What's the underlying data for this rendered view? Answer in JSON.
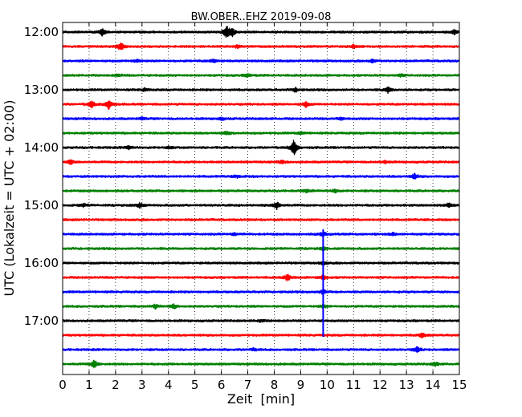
{
  "chart_data": {
    "type": "line",
    "title": "BW.OBER..EHZ 2019-09-08",
    "xlabel": "Zeit  [min]",
    "ylabel": "UTC (Lokalzeit = UTC + 02:00)",
    "xlim": [
      0,
      15
    ],
    "x_ticks": [
      "0",
      "1",
      "2",
      "3",
      "4",
      "5",
      "6",
      "7",
      "8",
      "9",
      "10",
      "11",
      "12",
      "13",
      "14",
      "15"
    ],
    "y_ticks": [
      "12:00",
      "13:00",
      "14:00",
      "15:00",
      "16:00",
      "17:00"
    ],
    "grid": "vertical dotted",
    "colors": [
      "#000000",
      "#ff0000",
      "#0000ff",
      "#008000"
    ],
    "traces": [
      {
        "start": "12:00",
        "color": "#000000",
        "events": [
          {
            "t": 1.5,
            "amp": 0.45
          },
          {
            "t": 6.2,
            "amp": 0.8
          },
          {
            "t": 6.4,
            "amp": 0.5
          },
          {
            "t": 14.8,
            "amp": 0.3
          }
        ]
      },
      {
        "start": "12:15",
        "color": "#ff0000",
        "events": [
          {
            "t": 2.2,
            "amp": 0.5
          },
          {
            "t": 6.6,
            "amp": 0.2
          },
          {
            "t": 11.0,
            "amp": 0.2
          }
        ]
      },
      {
        "start": "12:30",
        "color": "#0000ff",
        "events": [
          {
            "t": 2.8,
            "amp": 0.2
          },
          {
            "t": 5.7,
            "amp": 0.25
          },
          {
            "t": 11.7,
            "amp": 0.2
          }
        ]
      },
      {
        "start": "12:45",
        "color": "#008000",
        "events": [
          {
            "t": 2.1,
            "amp": 0.15
          },
          {
            "t": 7.0,
            "amp": 0.2
          },
          {
            "t": 12.8,
            "amp": 0.15
          }
        ]
      },
      {
        "start": "13:00",
        "color": "#000000",
        "events": [
          {
            "t": 3.1,
            "amp": 0.2
          },
          {
            "t": 8.8,
            "amp": 0.25
          },
          {
            "t": 12.3,
            "amp": 0.35
          }
        ]
      },
      {
        "start": "13:15",
        "color": "#ff0000",
        "events": [
          {
            "t": 1.1,
            "amp": 0.45
          },
          {
            "t": 1.75,
            "amp": 0.65
          },
          {
            "t": 9.2,
            "amp": 0.3
          }
        ]
      },
      {
        "start": "13:30",
        "color": "#0000ff",
        "events": [
          {
            "t": 3.0,
            "amp": 0.15
          },
          {
            "t": 6.0,
            "amp": 0.15
          },
          {
            "t": 10.5,
            "amp": 0.15
          }
        ]
      },
      {
        "start": "13:45",
        "color": "#008000",
        "events": [
          {
            "t": 6.2,
            "amp": 0.2
          },
          {
            "t": 9.0,
            "amp": 0.15
          }
        ]
      },
      {
        "start": "14:00",
        "color": "#000000",
        "events": [
          {
            "t": 2.5,
            "amp": 0.2
          },
          {
            "t": 4.0,
            "amp": 0.15
          },
          {
            "t": 8.75,
            "amp": 1.05
          }
        ]
      },
      {
        "start": "14:15",
        "color": "#ff0000",
        "events": [
          {
            "t": 0.3,
            "amp": 0.25
          },
          {
            "t": 8.3,
            "amp": 0.2
          },
          {
            "t": 12.2,
            "amp": 0.15
          }
        ]
      },
      {
        "start": "14:30",
        "color": "#0000ff",
        "events": [
          {
            "t": 6.6,
            "amp": 0.15
          },
          {
            "t": 13.3,
            "amp": 0.3
          }
        ]
      },
      {
        "start": "14:45",
        "color": "#008000",
        "events": [
          {
            "t": 9.2,
            "amp": 0.15
          },
          {
            "t": 10.3,
            "amp": 0.2
          }
        ]
      },
      {
        "start": "15:00",
        "color": "#000000",
        "events": [
          {
            "t": 0.8,
            "amp": 0.2
          },
          {
            "t": 2.9,
            "amp": 0.35
          },
          {
            "t": 8.1,
            "amp": 0.45
          },
          {
            "t": 14.6,
            "amp": 0.25
          }
        ]
      },
      {
        "start": "15:15",
        "color": "#ff0000",
        "events": []
      },
      {
        "start": "15:30",
        "color": "#0000ff",
        "events": [
          {
            "t": 6.5,
            "amp": 0.15
          },
          {
            "t": 9.85,
            "amp": 0.3
          },
          {
            "t": 12.5,
            "amp": 0.15
          }
        ]
      },
      {
        "start": "15:45",
        "color": "#008000",
        "events": [
          {
            "t": 9.85,
            "amp": 0.2
          }
        ]
      },
      {
        "start": "16:00",
        "color": "#000000",
        "events": [
          {
            "t": 9.85,
            "amp": 0.2
          }
        ]
      },
      {
        "start": "16:15",
        "color": "#ff0000",
        "events": [
          {
            "t": 8.5,
            "amp": 0.45
          },
          {
            "t": 9.85,
            "amp": 0.3
          }
        ]
      },
      {
        "start": "16:30",
        "color": "#0000ff",
        "events": [
          {
            "t": 9.85,
            "amp": 0.3
          }
        ]
      },
      {
        "start": "16:45",
        "color": "#008000",
        "events": [
          {
            "t": 3.5,
            "amp": 0.25
          },
          {
            "t": 4.2,
            "amp": 0.3
          },
          {
            "t": 9.85,
            "amp": 0.2
          }
        ]
      },
      {
        "start": "17:00",
        "color": "#000000",
        "events": [
          {
            "t": 7.5,
            "amp": 0.15
          }
        ]
      },
      {
        "start": "17:15",
        "color": "#ff0000",
        "events": [
          {
            "t": 13.6,
            "amp": 0.3
          }
        ]
      },
      {
        "start": "17:30",
        "color": "#0000ff",
        "events": [
          {
            "t": 7.2,
            "amp": 0.15
          },
          {
            "t": 13.4,
            "amp": 0.35
          }
        ]
      },
      {
        "start": "17:45",
        "color": "#008000",
        "events": [
          {
            "t": 1.2,
            "amp": 0.55
          },
          {
            "t": 14.1,
            "amp": 0.25
          }
        ]
      }
    ],
    "spike": {
      "t": 9.85,
      "color": "#0000ff",
      "from": "15:30",
      "to": "17:15"
    }
  }
}
